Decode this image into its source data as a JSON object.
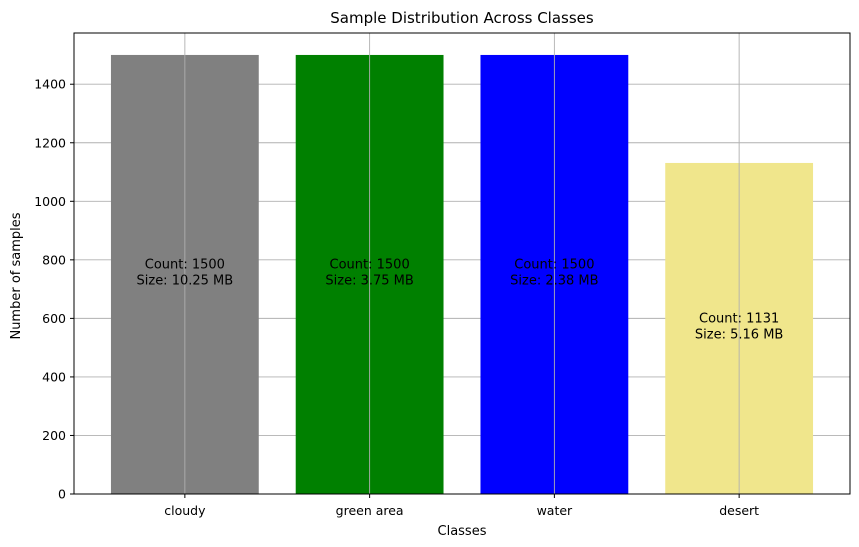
{
  "chart_data": {
    "type": "bar",
    "title": "Sample Distribution Across Classes",
    "xlabel": "Classes",
    "ylabel": "Number of samples",
    "categories": [
      "cloudy",
      "green area",
      "water",
      "desert"
    ],
    "values": [
      1500,
      1500,
      1500,
      1131
    ],
    "sizes": [
      "10.25 MB",
      "3.75 MB",
      "2.38 MB",
      "5.16 MB"
    ],
    "bar_labels": [
      [
        "Count: 1500",
        "Size: 10.25 MB"
      ],
      [
        "Count: 1500",
        "Size: 3.75 MB"
      ],
      [
        "Count: 1500",
        "Size: 2.38 MB"
      ],
      [
        "Count: 1131",
        "Size: 5.16 MB"
      ]
    ],
    "colors": [
      "#808080",
      "#008000",
      "#0000ff",
      "#f0e68c"
    ],
    "ylim": [
      0,
      1575
    ],
    "yticks": [
      0,
      200,
      400,
      600,
      800,
      1000,
      1200,
      1400
    ],
    "grid": true
  }
}
